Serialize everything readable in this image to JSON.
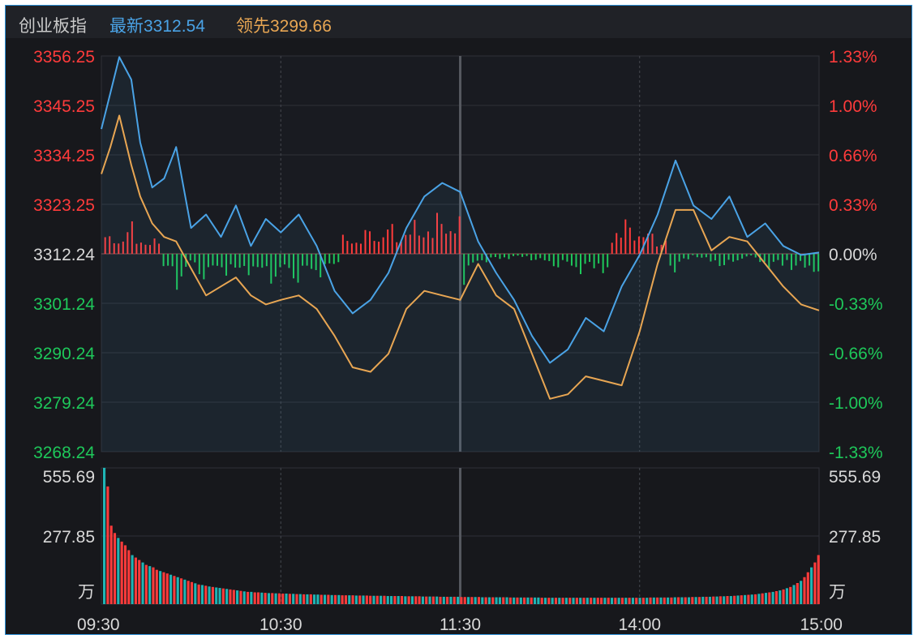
{
  "header": {
    "index_name": "创业板指",
    "latest_label": "最新",
    "latest_value": "3312.54",
    "leading_label": "领先",
    "leading_value": "3299.66"
  },
  "colors": {
    "up": "#ff3b3b",
    "down": "#1ec85a",
    "flat": "#d9d9d9",
    "latest_line": "#4aa3e6",
    "leading_line": "#e8a653",
    "volume_teal": "#1fb5b5",
    "grid": "#2f3138",
    "background": "#17181c"
  },
  "volume_unit": "万",
  "chart_data": [
    {
      "type": "line",
      "title": "",
      "x_ticks": [
        "09:30",
        "10:30",
        "11:30",
        "14:00",
        "15:00"
      ],
      "price_ticks": [
        "3356.25",
        "3345.25",
        "3334.25",
        "3323.25",
        "3312.24",
        "3301.24",
        "3290.24",
        "3279.24",
        "3268.24"
      ],
      "pct_ticks": [
        "1.33%",
        "1.00%",
        "0.66%",
        "0.33%",
        "0.00%",
        "-0.33%",
        "-0.66%",
        "-1.00%",
        "-1.33%"
      ],
      "ylim": [
        3268.24,
        3356.25
      ],
      "base_price": 3312.24,
      "x_minutes": [
        0,
        3,
        6,
        10,
        13,
        17,
        21,
        25,
        30,
        35,
        40,
        45,
        50,
        55,
        60,
        66,
        72,
        78,
        84,
        90,
        96,
        102,
        108,
        114,
        120,
        126,
        132,
        138,
        144,
        150,
        156,
        162,
        168,
        174,
        180,
        186,
        192,
        198,
        204,
        210,
        216,
        222,
        228,
        234,
        240
      ],
      "series": [
        {
          "name": "最新",
          "values": [
            3340,
            3348,
            3356,
            3351,
            3337,
            3327,
            3329,
            3336,
            3318,
            3321,
            3316,
            3323,
            3314,
            3320,
            3317,
            3321,
            3314,
            3304,
            3299,
            3302,
            3308,
            3318,
            3325,
            3328,
            3326,
            3315,
            3308,
            3302,
            3294,
            3288,
            3291,
            3298,
            3295,
            3305,
            3312,
            3321,
            3333,
            3323,
            3320,
            3325,
            3316,
            3319,
            3314,
            3312,
            3312.54
          ]
        },
        {
          "name": "领先",
          "values": [
            3330,
            3336,
            3343,
            3332,
            3325,
            3319,
            3316,
            3315,
            3309,
            3303,
            3305,
            3307,
            3303,
            3301,
            3302,
            3303,
            3300,
            3294,
            3287,
            3286,
            3290,
            3300,
            3304,
            3303,
            3302,
            3310,
            3303,
            3300,
            3290,
            3280,
            3281,
            3285,
            3284,
            3283,
            3295,
            3310,
            3322,
            3322,
            3313,
            3316,
            3315,
            3310,
            3305,
            3301,
            3299.66
          ]
        }
      ],
      "volume": {
        "ticks": [
          "555.69",
          "277.85"
        ],
        "ylim": [
          0,
          555.69
        ],
        "values": [
          556,
          480,
          320,
          290,
          270,
          255,
          240,
          220,
          200,
          190,
          180,
          170,
          160,
          155,
          150,
          140,
          135,
          130,
          125,
          120,
          115,
          110,
          105,
          100,
          95,
          90,
          85,
          80,
          78,
          75,
          72,
          70,
          68,
          66,
          64,
          62,
          60,
          58,
          56,
          54,
          52,
          50,
          50,
          48,
          48,
          47,
          46,
          45,
          45,
          44,
          44,
          43,
          43,
          42,
          42,
          41,
          41,
          40,
          40,
          40,
          39,
          39,
          38,
          38,
          38,
          37,
          37,
          37,
          36,
          36,
          36,
          36,
          35,
          35,
          35,
          35,
          34,
          34,
          34,
          34,
          34,
          33,
          33,
          33,
          33,
          33,
          32,
          32,
          32,
          32,
          32,
          31,
          31,
          31,
          31,
          31,
          30,
          30,
          30,
          30,
          30,
          30,
          29,
          29,
          29,
          29,
          29,
          29,
          28,
          28,
          28,
          28,
          28,
          28,
          28,
          28,
          27,
          27,
          27,
          27,
          27,
          27,
          27,
          27,
          27,
          26,
          26,
          26,
          26,
          26,
          26,
          26,
          26,
          26,
          26,
          26,
          26,
          26,
          26,
          26,
          26,
          26,
          26,
          26,
          26,
          26,
          26,
          26,
          26,
          26,
          26,
          26,
          26,
          26,
          26,
          26,
          27,
          27,
          27,
          27,
          27,
          27,
          27,
          28,
          28,
          28,
          28,
          28,
          29,
          29,
          29,
          30,
          30,
          30,
          31,
          31,
          32,
          32,
          33,
          33,
          34,
          35,
          36,
          37,
          38,
          39,
          40,
          42,
          44,
          46,
          48,
          50,
          53,
          56,
          60,
          65,
          70,
          78,
          86,
          95,
          110,
          130,
          150,
          170,
          200
        ],
        "colors": [
          "t",
          "r",
          "r",
          "r",
          "t",
          "r",
          "r",
          "r",
          "t",
          "r",
          "r",
          "t",
          "r",
          "t",
          "r",
          "r",
          "t",
          "r",
          "r",
          "t",
          "r",
          "t",
          "r",
          "t",
          "r",
          "r",
          "t",
          "r",
          "t",
          "r",
          "t",
          "r",
          "t",
          "t",
          "r",
          "t",
          "r",
          "r",
          "t",
          "r",
          "t",
          "r",
          "t",
          "r",
          "r",
          "t",
          "r",
          "t",
          "r",
          "t",
          "r",
          "r",
          "t",
          "r",
          "t",
          "r",
          "t",
          "r",
          "t",
          "r",
          "t",
          "t",
          "r",
          "t",
          "r",
          "t",
          "r",
          "t",
          "r",
          "r",
          "t",
          "r",
          "t",
          "r",
          "t",
          "r",
          "r",
          "t",
          "r",
          "t",
          "r",
          "t",
          "t",
          "r",
          "t",
          "r",
          "t",
          "r",
          "t",
          "r",
          "r",
          "t",
          "r",
          "t",
          "r",
          "t",
          "r",
          "t",
          "r",
          "t",
          "r",
          "t",
          "r",
          "r",
          "t",
          "r",
          "t",
          "r",
          "t",
          "r",
          "t",
          "r",
          "t",
          "t",
          "r",
          "t",
          "r",
          "t",
          "r",
          "t",
          "r",
          "t",
          "r",
          "t",
          "t",
          "r",
          "t",
          "r",
          "t",
          "r",
          "t",
          "r",
          "t",
          "r",
          "t",
          "r",
          "t",
          "r",
          "t",
          "r",
          "t",
          "r",
          "r",
          "t",
          "r",
          "t",
          "r",
          "t",
          "r",
          "t",
          "r",
          "t",
          "r",
          "t",
          "r",
          "t",
          "r",
          "t",
          "r",
          "t",
          "r",
          "t",
          "r",
          "t",
          "r",
          "t",
          "r",
          "t",
          "r",
          "t",
          "r",
          "t",
          "r",
          "t",
          "r",
          "t",
          "r",
          "t",
          "r",
          "t",
          "r",
          "t",
          "r",
          "t",
          "r",
          "t",
          "r",
          "t",
          "r",
          "t",
          "r",
          "t",
          "r",
          "t",
          "r",
          "t",
          "r",
          "t",
          "r",
          "t",
          "r",
          "r",
          "t",
          "r",
          "r",
          "t",
          "r",
          "t"
        ]
      }
    }
  ]
}
